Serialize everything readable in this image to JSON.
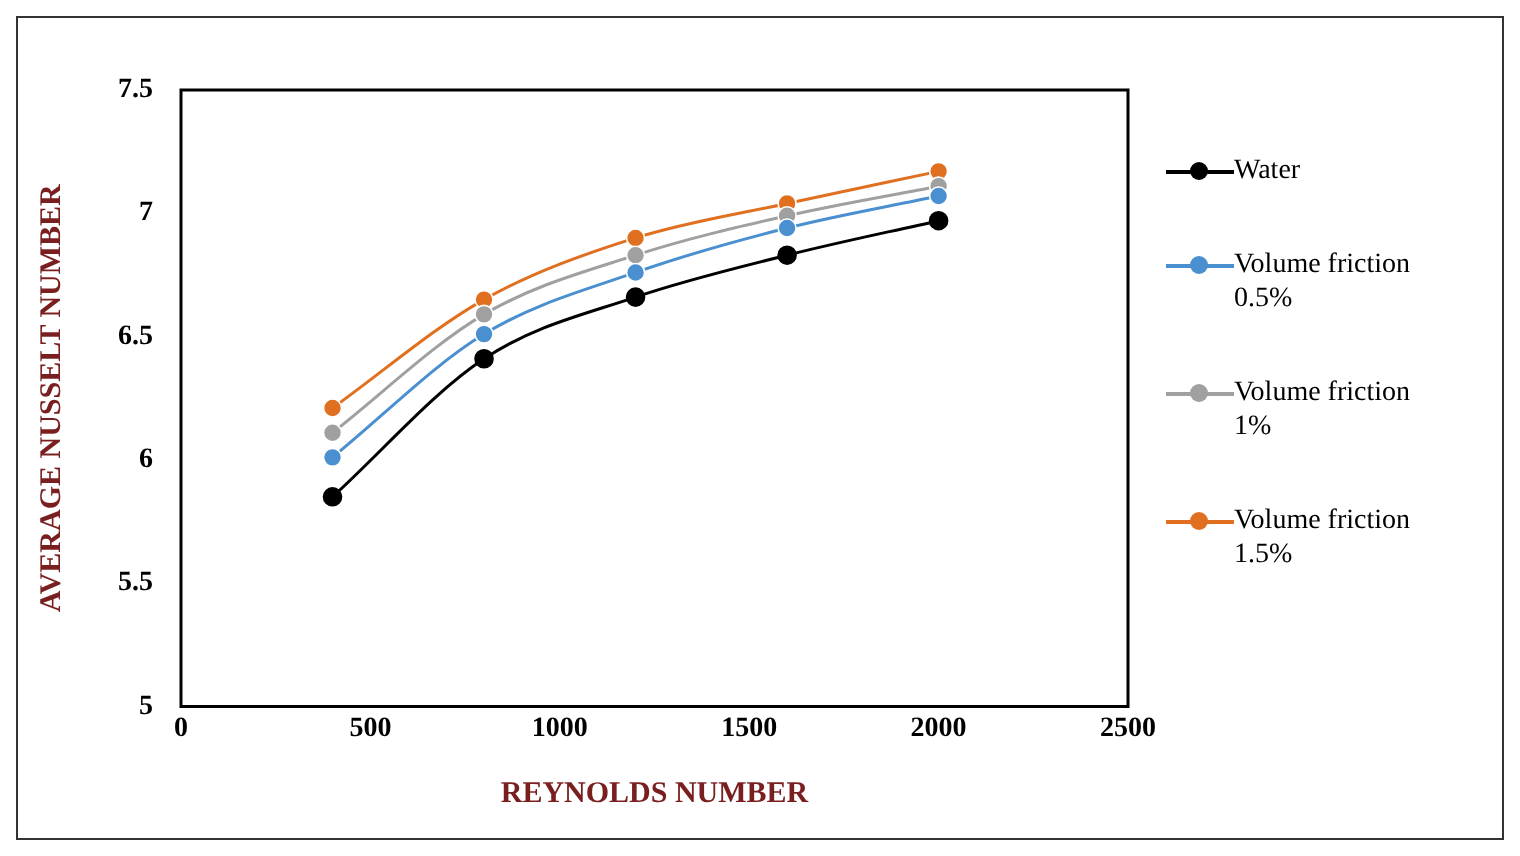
{
  "chart_data": {
    "type": "line",
    "xlabel": "REYNOLDS NUMBER",
    "ylabel": "AVERAGE NUSSELT NUMBER",
    "x": [
      400,
      800,
      1200,
      1600,
      2000
    ],
    "series": [
      {
        "name": "Water",
        "color": "#000000",
        "values": [
          5.85,
          6.41,
          6.66,
          6.83,
          6.97
        ]
      },
      {
        "name": "Volume friction 0.5%",
        "color": "#4a8fd0",
        "values": [
          6.01,
          6.51,
          6.76,
          6.94,
          7.07
        ]
      },
      {
        "name": "Volume friction 1%",
        "color": "#a0a0a0",
        "values": [
          6.11,
          6.59,
          6.83,
          6.99,
          7.11
        ]
      },
      {
        "name": "Volume friction 1.5%",
        "color": "#e07020",
        "values": [
          6.21,
          6.65,
          6.9,
          7.04,
          7.17
        ]
      }
    ],
    "xlim": [
      0,
      2500
    ],
    "xticks": [
      0,
      500,
      1000,
      1500,
      2000,
      2500
    ],
    "ylim": [
      5,
      7.5
    ],
    "yticks": [
      5,
      5.5,
      6,
      6.5,
      7,
      7.5
    ],
    "grid": false,
    "legend": "right",
    "marker": "circle",
    "line_style": "solid"
  }
}
